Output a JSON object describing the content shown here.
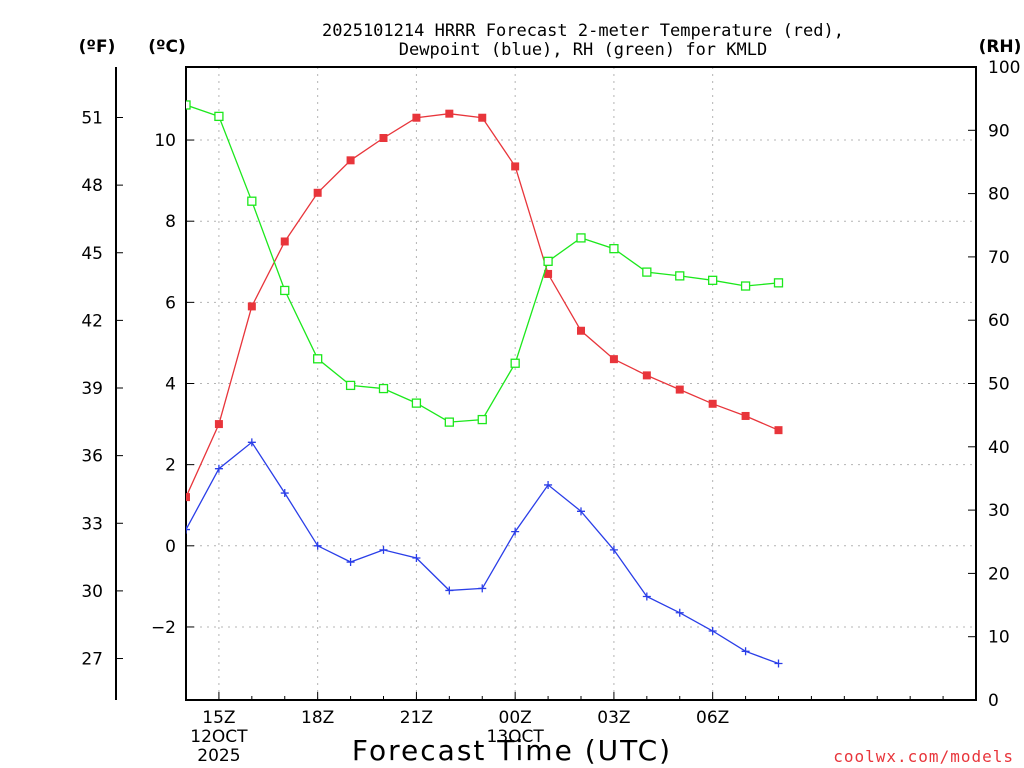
{
  "chart_data": {
    "type": "line",
    "title_line1": "2025101214 HRRR Forecast 2-meter Temperature (red),",
    "title_line2": "Dewpoint (blue), RH (green) for KMLD",
    "xlabel": "Forecast Time (UTC)",
    "credit": "coolwx.com/models",
    "unit_labels": {
      "fahrenheit": "(ºF)",
      "celsius": "(ºC)",
      "rh": "(RH)"
    },
    "x_range_hours": [
      14,
      38
    ],
    "x": [
      14,
      15,
      16,
      17,
      18,
      19,
      20,
      21,
      22,
      23,
      24,
      25,
      26,
      27,
      28,
      29,
      30,
      31,
      32
    ],
    "x_ticks": [
      {
        "hour": 15,
        "label": "15Z",
        "sublabel1": "12OCT",
        "sublabel2": "2025"
      },
      {
        "hour": 18,
        "label": "18Z",
        "sublabel1": "",
        "sublabel2": ""
      },
      {
        "hour": 21,
        "label": "21Z",
        "sublabel1": "",
        "sublabel2": ""
      },
      {
        "hour": 24,
        "label": "00Z",
        "sublabel1": "13OCT",
        "sublabel2": ""
      },
      {
        "hour": 27,
        "label": "03Z",
        "sublabel1": "",
        "sublabel2": ""
      },
      {
        "hour": 30,
        "label": "06Z",
        "sublabel1": "",
        "sublabel2": ""
      }
    ],
    "celsius_axis": {
      "range": [
        -3.8,
        11.8
      ],
      "ticks": [
        -2,
        0,
        2,
        4,
        6,
        8,
        10
      ]
    },
    "fahrenheit_axis": {
      "ticks": [
        27,
        30,
        33,
        36,
        39,
        42,
        45,
        48,
        51
      ]
    },
    "rh_axis": {
      "range": [
        0,
        100
      ],
      "ticks": [
        0,
        10,
        20,
        30,
        40,
        50,
        60,
        70,
        80,
        90,
        100
      ]
    },
    "series": [
      {
        "name": "Temperature",
        "color": "#e8353b",
        "marker": "filled-square",
        "axis": "celsius",
        "values": [
          1.2,
          3.0,
          5.9,
          7.5,
          8.7,
          9.5,
          10.05,
          10.55,
          10.65,
          10.55,
          9.35,
          6.7,
          5.3,
          4.6,
          4.2,
          3.85,
          3.5,
          3.2,
          2.85
        ]
      },
      {
        "name": "Dewpoint",
        "color": "#2a3ee8",
        "marker": "plus",
        "axis": "celsius",
        "values": [
          0.4,
          1.9,
          2.55,
          1.3,
          0.0,
          -0.4,
          -0.1,
          -0.3,
          -1.1,
          -1.05,
          0.35,
          1.5,
          0.85,
          -0.1,
          -1.25,
          -1.65,
          -2.1,
          -2.6,
          -2.9
        ]
      },
      {
        "name": "RH",
        "color": "#1ce81c",
        "marker": "open-square",
        "axis": "rh",
        "values": [
          94,
          92.2,
          78.8,
          64.7,
          53.9,
          49.7,
          49.2,
          46.9,
          43.9,
          44.3,
          53.2,
          69.3,
          73.0,
          71.3,
          67.6,
          67.0,
          66.3,
          65.4,
          65.9
        ]
      }
    ]
  }
}
